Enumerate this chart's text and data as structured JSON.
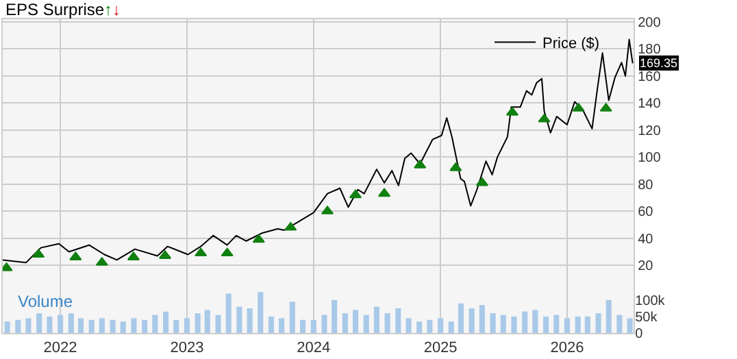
{
  "chart_data": {
    "type": "line",
    "title": "EPS Surprise↑↓",
    "xlim": [
      "2021-07-19",
      "2026-07-12"
    ],
    "xticks": [
      "2022",
      "2023",
      "2024",
      "2025",
      "2026"
    ],
    "ylim": [
      -30,
      202
    ],
    "yticks": [
      20,
      40,
      60,
      80,
      100,
      120,
      140,
      160,
      180,
      200
    ],
    "y2lim": [
      0,
      956
    ],
    "y2ticks": [
      0,
      {
        "value": 50,
        "label": "50k"
      },
      {
        "value": 100,
        "label": "100k"
      }
    ],
    "grid": true,
    "legend": "top right",
    "annotations": [
      {
        "text": "169.35",
        "x": "2026-07-09",
        "y": 169.35
      }
    ],
    "series": [
      {
        "name": "Price ($)",
        "color": "#000000",
        "x": [
          "2021-07-19",
          "2021-09-24",
          "2021-11-06",
          "2021-12-28",
          "2022-01-26",
          "2022-03-25",
          "2022-05-08",
          "2022-06-13",
          "2022-08-04",
          "2022-10-08",
          "2022-11-06",
          "2023-01-04",
          "2023-02-10",
          "2023-03-18",
          "2023-04-27",
          "2023-05-23",
          "2023-06-21",
          "2023-08-07",
          "2023-09-20",
          "2023-10-08",
          "2023-11-17",
          "2024-01-01",
          "2024-02-10",
          "2024-03-17",
          "2024-04-10",
          "2024-05-08",
          "2024-05-26",
          "2024-07-01",
          "2024-07-23",
          "2024-08-14",
          "2024-09-02",
          "2024-09-20",
          "2024-10-08",
          "2024-11-03",
          "2024-12-09",
          "2025-01-04",
          "2025-01-19",
          "2025-02-03",
          "2025-02-28",
          "2025-03-11",
          "2025-03-29",
          "2025-04-16",
          "2025-05-12",
          "2025-05-30",
          "2025-06-14",
          "2025-07-13",
          "2025-07-24",
          "2025-08-19",
          "2025-09-06",
          "2025-09-21",
          "2025-10-05",
          "2025-10-20",
          "2025-10-27",
          "2025-11-14",
          "2025-12-02",
          "2026-01-01",
          "2026-01-23",
          "2026-02-17",
          "2026-03-14",
          "2026-03-29",
          "2026-04-13",
          "2026-05-01",
          "2026-05-19",
          "2026-06-07",
          "2026-06-18",
          "2026-06-29",
          "2026-07-09"
        ],
        "values": [
          24,
          22,
          33,
          36,
          30,
          35,
          28,
          24,
          32,
          27,
          34,
          28,
          34,
          42,
          35,
          42,
          38,
          44,
          47,
          46,
          52,
          59,
          73,
          77,
          63,
          76,
          73,
          91,
          81,
          90,
          79,
          99,
          103,
          95,
          113,
          116,
          129,
          115,
          84,
          82,
          64,
          76,
          97,
          87,
          100,
          115,
          137,
          137,
          149,
          146,
          155,
          158,
          134,
          118,
          130,
          124,
          141,
          134,
          121,
          150,
          177,
          142,
          159,
          170,
          160,
          187,
          169.35
        ]
      },
      {
        "type": "scatter",
        "marker": "triangle",
        "color": "#108010",
        "x": [
          "2021-07-30",
          "2021-10-30",
          "2022-02-14",
          "2022-05-01",
          "2022-07-31",
          "2022-10-30",
          "2023-02-10",
          "2023-04-27",
          "2023-07-27",
          "2023-10-27",
          "2024-02-10",
          "2024-05-01",
          "2024-07-23",
          "2024-11-03",
          "2025-02-14",
          "2025-05-01",
          "2025-07-27",
          "2025-10-27",
          "2026-02-03",
          "2026-04-23"
        ],
        "values": [
          18,
          28,
          26,
          22,
          26,
          27,
          29,
          29,
          39,
          48,
          60,
          72,
          73,
          94,
          92,
          81,
          133,
          128,
          136,
          136
        ]
      },
      {
        "name": "Volume",
        "type": "bar",
        "axis": "y2",
        "color": "#a9c9e9",
        "x": [
          "2021-08",
          "2021-09",
          "2021-10",
          "2021-11",
          "2021-12",
          "2022-01",
          "2022-02",
          "2022-03",
          "2022-04",
          "2022-05",
          "2022-06",
          "2022-07",
          "2022-08",
          "2022-09",
          "2022-10",
          "2022-11",
          "2022-12",
          "2023-01",
          "2023-02",
          "2023-03",
          "2023-04",
          "2023-05",
          "2023-06",
          "2023-07",
          "2023-08",
          "2023-09",
          "2023-10",
          "2023-11",
          "2023-12",
          "2024-01",
          "2024-02",
          "2024-03",
          "2024-04",
          "2024-05",
          "2024-06",
          "2024-07",
          "2024-08",
          "2024-09",
          "2024-10",
          "2024-11",
          "2024-12",
          "2025-01",
          "2025-02",
          "2025-03",
          "2025-04",
          "2025-05",
          "2025-06",
          "2025-07",
          "2025-08",
          "2025-09",
          "2025-10",
          "2025-11",
          "2025-12",
          "2026-01",
          "2026-02",
          "2026-03",
          "2026-04",
          "2026-05",
          "2026-06",
          "2026-07"
        ],
        "values": [
          35,
          40,
          45,
          60,
          50,
          55,
          60,
          45,
          40,
          45,
          40,
          35,
          45,
          40,
          55,
          65,
          40,
          45,
          60,
          70,
          55,
          120,
          80,
          75,
          125,
          50,
          45,
          95,
          40,
          40,
          55,
          100,
          60,
          70,
          55,
          80,
          60,
          75,
          45,
          35,
          40,
          45,
          35,
          90,
          75,
          85,
          60,
          55,
          50,
          65,
          70,
          50,
          55,
          45,
          50,
          50,
          60,
          100,
          55,
          45
        ]
      }
    ]
  }
}
